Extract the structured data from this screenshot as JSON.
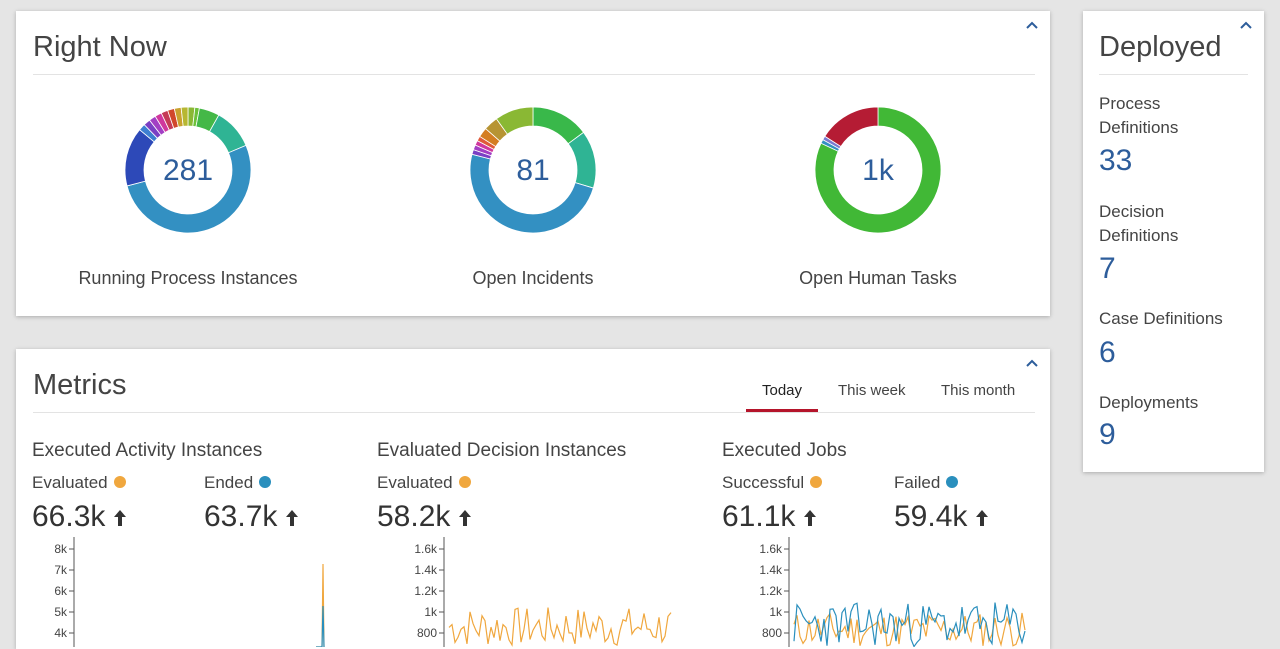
{
  "right_now": {
    "title": "Right Now",
    "donuts": [
      {
        "value": "281",
        "label": "Running Process Instances"
      },
      {
        "value": "81",
        "label": "Open Incidents"
      },
      {
        "value": "1k",
        "label": "Open Human Tasks"
      }
    ]
  },
  "deployed": {
    "title": "Deployed",
    "items": [
      {
        "label": "Process Definitions",
        "value": "33"
      },
      {
        "label": "Decision Definitions",
        "value": "7"
      },
      {
        "label": "Case Definitions",
        "value": "6"
      },
      {
        "label": "Deployments",
        "value": "9"
      }
    ]
  },
  "metrics": {
    "title": "Metrics",
    "tabs": [
      {
        "label": "Today",
        "active": true
      },
      {
        "label": "This week",
        "active": false
      },
      {
        "label": "This month",
        "active": false
      }
    ],
    "panels": [
      {
        "title": "Executed Activity Instances",
        "stats": [
          {
            "label": "Evaluated",
            "color": "#f0a73e",
            "value": "66.3k"
          },
          {
            "label": "Ended",
            "color": "#2a8fbd",
            "value": "63.7k"
          }
        ],
        "y_ticks": [
          "8k",
          "7k",
          "6k",
          "5k",
          "4k"
        ]
      },
      {
        "title": "Evaluated Decision Instances",
        "stats": [
          {
            "label": "Evaluated",
            "color": "#f0a73e",
            "value": "58.2k"
          }
        ],
        "y_ticks": [
          "1.6k",
          "1.4k",
          "1.2k",
          "1k",
          "800"
        ]
      },
      {
        "title": "Executed Jobs",
        "stats": [
          {
            "label": "Successful",
            "color": "#f0a73e",
            "value": "61.1k"
          },
          {
            "label": "Failed",
            "color": "#2a8fbd",
            "value": "59.4k"
          }
        ],
        "y_ticks": [
          "1.6k",
          "1.4k",
          "1.2k",
          "1k",
          "800"
        ]
      }
    ]
  },
  "colors": {
    "accent_blue": "#2d5d9b",
    "active_tab": "#b5152b",
    "orange": "#f0a73e",
    "blue": "#2a8fbd"
  },
  "icons": {
    "collapse": "chevron-up-icon",
    "trend": "arrow-up-icon"
  }
}
